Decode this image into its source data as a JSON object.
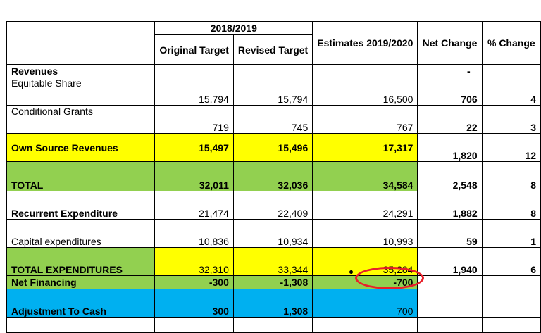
{
  "header": {
    "period": "2018/2019",
    "col_original": "Original Target",
    "col_revised": "Revised Target",
    "col_estimates": "Estimates 2019/2020",
    "col_net": "Net Change",
    "col_pct": "% Change"
  },
  "revenues_row": {
    "label": "Revenues",
    "net": "-"
  },
  "rows": [
    {
      "label": "Equitable  Share",
      "original": "15,794",
      "revised": "15,794",
      "estimates": "16,500",
      "net": "706",
      "pct": "4"
    },
    {
      "label": "Conditional  Grants",
      "original": "719",
      "revised": "745",
      "estimates": "767",
      "net": "22",
      "pct": "3"
    },
    {
      "label": "Own Source Revenues",
      "original": "15,497",
      "revised": "15,496",
      "estimates": "17,317",
      "net": "1,820",
      "pct": "12"
    },
    {
      "label": "TOTAL",
      "original": "32,011",
      "revised": "32,036",
      "estimates": "34,584",
      "net": "2,548",
      "pct": "8"
    },
    {
      "label": "Recurrent  Expenditure",
      "original": "21,474",
      "revised": "22,409",
      "estimates": "24,291",
      "net": "1,882",
      "pct": "8"
    },
    {
      "label": "Capital expenditures",
      "original": "10,836",
      "revised": "10,934",
      "estimates": "10,993",
      "net": "59",
      "pct": "1"
    },
    {
      "label": "TOTAL  EXPENDITURES",
      "original": "32,310",
      "revised": "33,344",
      "estimates": "35,284",
      "net": "1,940",
      "pct": "6"
    },
    {
      "label": "Net  Financing",
      "original": "-300",
      "revised": "-1,308",
      "estimates": "-700",
      "net": "",
      "pct": ""
    },
    {
      "label": "Adjustment To Cash",
      "original": "300",
      "revised": "1,308",
      "estimates": "700",
      "net": "",
      "pct": ""
    }
  ],
  "colors": {
    "yellow": "#ffff00",
    "green": "#92d050",
    "blue": "#00b0f0",
    "annotation": "#e8202a"
  }
}
